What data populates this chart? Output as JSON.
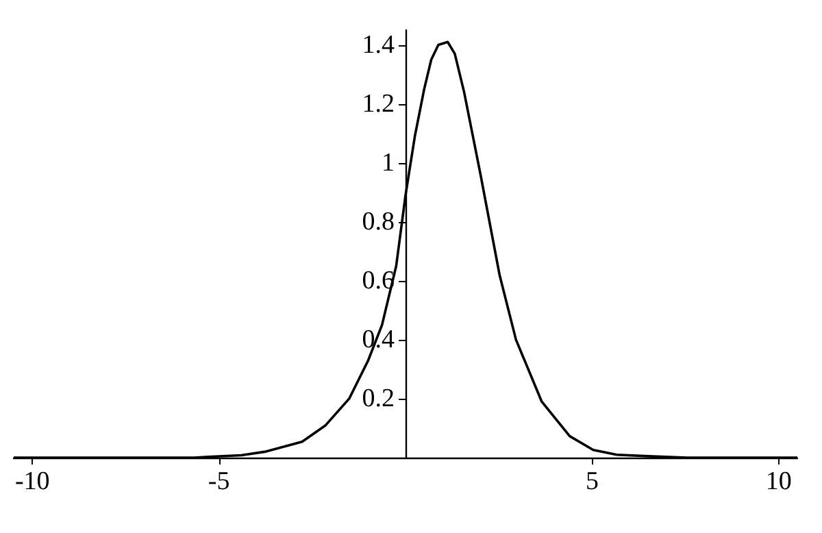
{
  "chart_data": {
    "type": "line",
    "x": [
      -10.5,
      -5.66,
      -5.28,
      -4.4,
      -3.77,
      -2.77,
      -2.14,
      -1.51,
      -1.0,
      -0.63,
      -0.25,
      0,
      0.25,
      0.5,
      0.69,
      0.88,
      1.13,
      1.32,
      1.57,
      2.01,
      2.52,
      2.96,
      3.65,
      4.4,
      5.03,
      5.66,
      6.5,
      7.55,
      10.5
    ],
    "series": [
      {
        "color": "#000000",
        "values": [
          0,
          0,
          0.003,
          0.008,
          0.02,
          0.054,
          0.11,
          0.2,
          0.33,
          0.45,
          0.65,
          0.89,
          1.09,
          1.25,
          1.35,
          1.4,
          1.41,
          1.37,
          1.24,
          0.96,
          0.62,
          0.4,
          0.19,
          0.073,
          0.026,
          0.01,
          0.005,
          0,
          0
        ]
      }
    ],
    "xlim": [
      -10.5,
      10.5
    ],
    "xticks": [
      -10,
      -5,
      5,
      10
    ],
    "ylim": [
      0,
      1.45
    ],
    "yticks": [
      0.2,
      0.4,
      0.6,
      0.8,
      1,
      1.2,
      1.4
    ],
    "grid": false,
    "marker": "none",
    "line_style": "solid"
  }
}
